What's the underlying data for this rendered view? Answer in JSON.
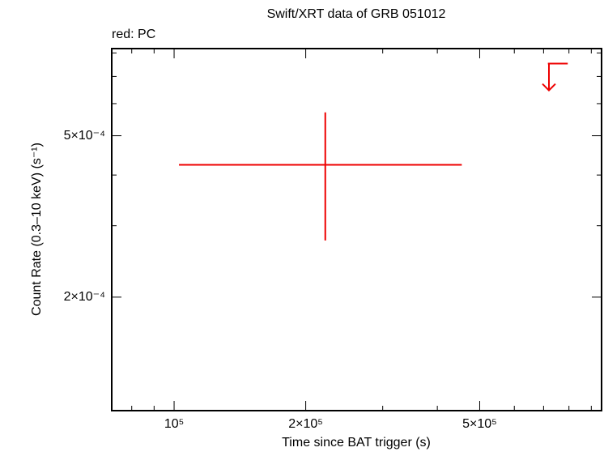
{
  "chart_data": {
    "type": "scatter",
    "title": "Swift/XRT data of GRB 051012",
    "annotation": "red: PC",
    "x_label": "Time since BAT trigger (s)",
    "y_label": "Count Rate (0.3–10 keV) (s⁻¹)",
    "xscale": "log",
    "yscale": "log",
    "xlim": [
      72000,
      950000
    ],
    "ylim": [
      0.000105,
      0.00082
    ],
    "xticks": [
      {
        "value": 100000,
        "label": "10⁵"
      },
      {
        "value": 200000,
        "label": "2×10⁵"
      },
      {
        "value": 500000,
        "label": "5×10⁵"
      }
    ],
    "xminor": [
      80000,
      90000,
      300000,
      400000,
      600000,
      700000,
      800000,
      900000
    ],
    "yticks": [
      {
        "value": 0.0002,
        "label": "2×10⁻⁴"
      },
      {
        "value": 0.0005,
        "label": "5×10⁻⁴"
      }
    ],
    "yminor": [
      0.0003,
      0.0004,
      0.0006,
      0.0007,
      0.0008
    ],
    "series": [
      {
        "color": "#ee0000",
        "x": [
          221700
        ],
        "xerr_minus": [
          119100
        ],
        "xerr_plus": [
          233300
        ],
        "values": [
          0.000424
        ],
        "yerr_minus": [
          0.000148
        ],
        "yerr_plus": [
          0.000147
        ]
      }
    ],
    "upper_limits": {
      "color": "#ee0000",
      "x": [
        720000
      ],
      "xerr_minus": [
        4000
      ],
      "xerr_plus": [
        75000
      ],
      "values": [
        0.000753
      ]
    }
  }
}
